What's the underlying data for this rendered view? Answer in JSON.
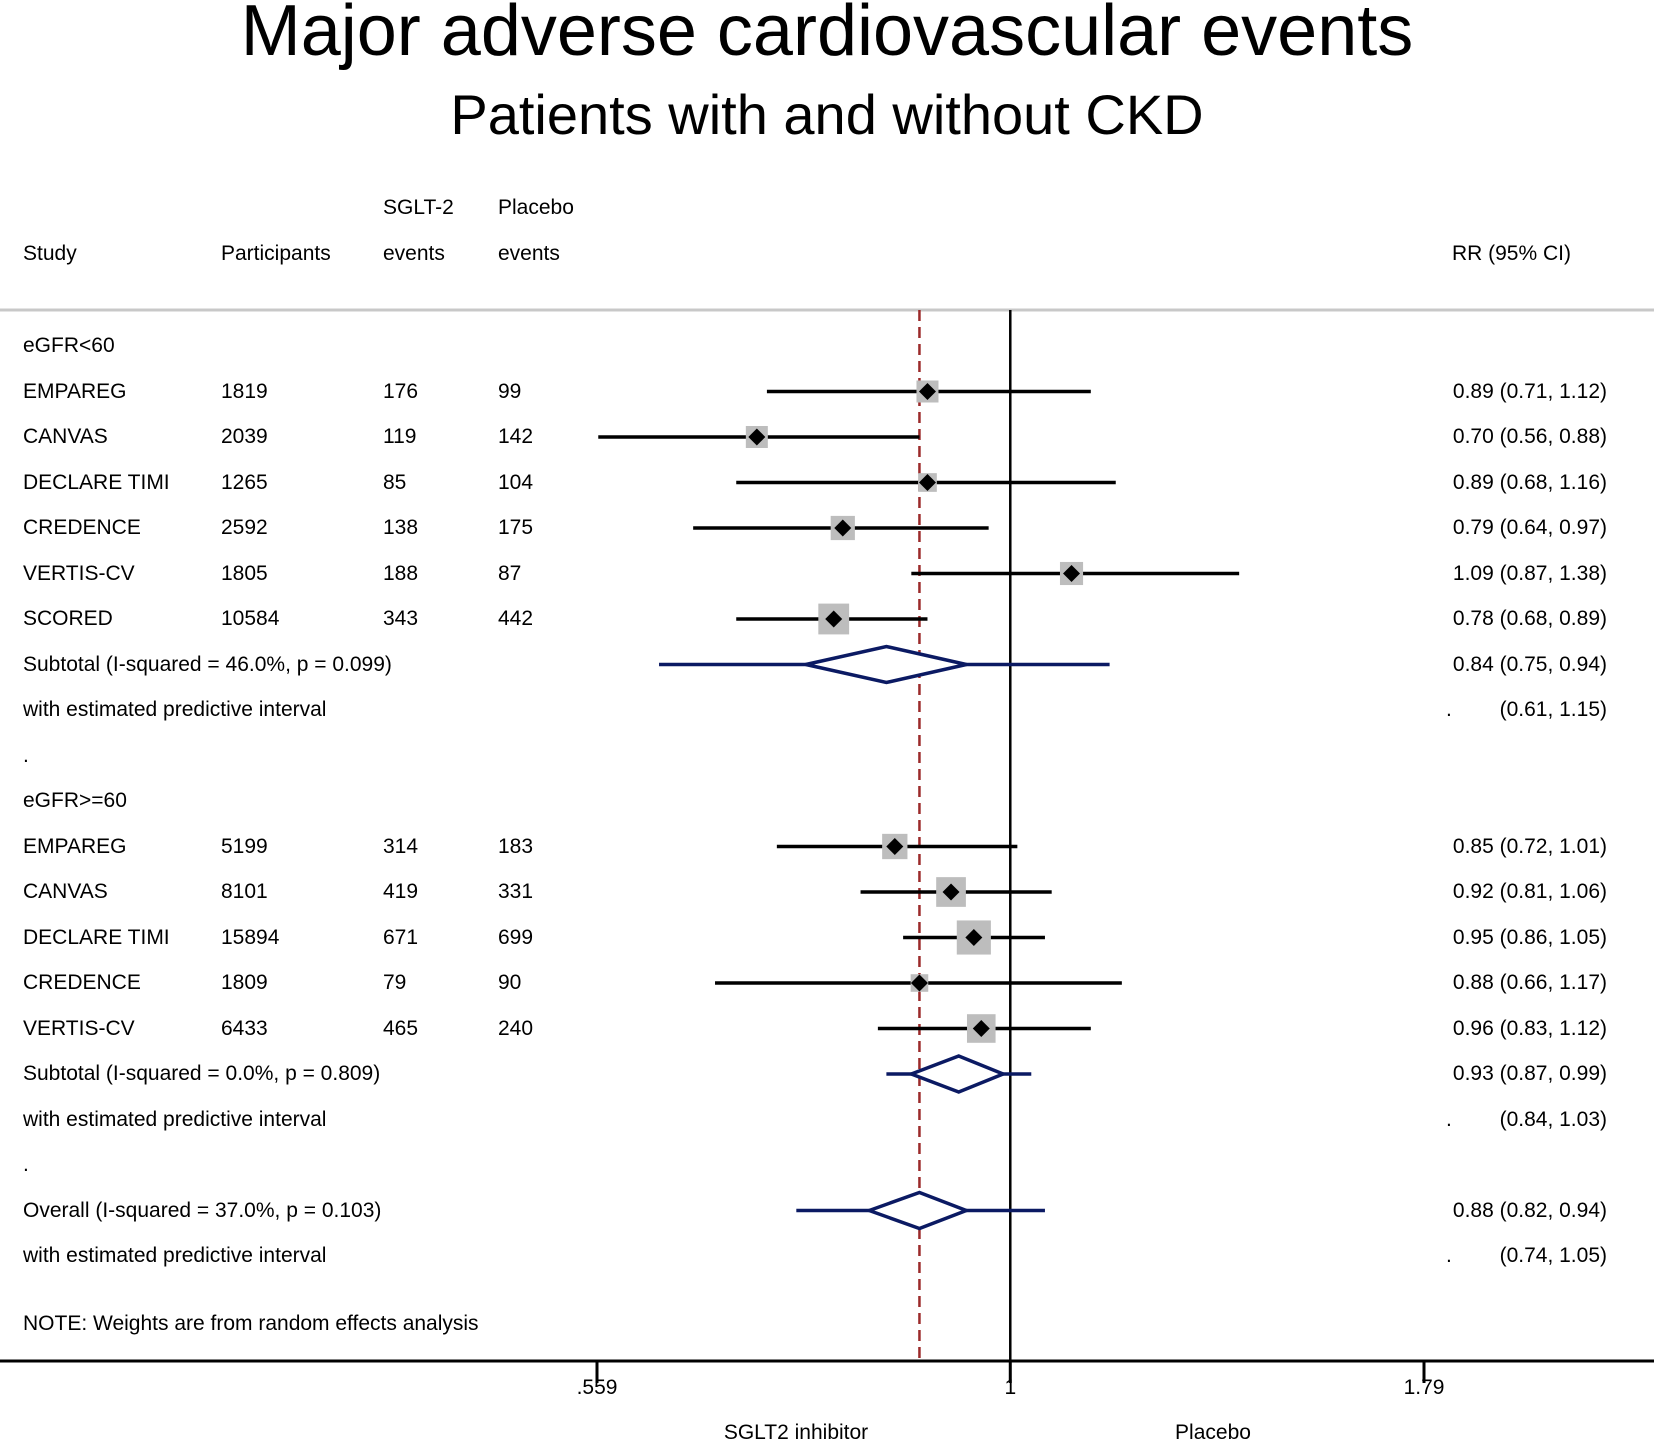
{
  "chart_data": {
    "type": "forest",
    "title": "Major adverse cardiovascular events",
    "subtitle": "Patients with and without CKD",
    "columns": {
      "study": "Study",
      "participants": "Participants",
      "sglt2_top": "SGLT-2",
      "sglt2_bottom": "events",
      "placebo_top": "Placebo",
      "placebo_bottom": "events",
      "rr": "RR (95% CI)"
    },
    "rows": [
      {
        "kind": "group",
        "label": "eGFR<60"
      },
      {
        "kind": "study",
        "label": "EMPAREG",
        "participants": "1819",
        "sglt2_events": "176",
        "placebo_events": "99",
        "rr": 0.89,
        "lo": 0.71,
        "hi": 1.12,
        "weight": 1.0,
        "text": "0.89 (0.71, 1.12)"
      },
      {
        "kind": "study",
        "label": "CANVAS",
        "participants": "2039",
        "sglt2_events": "119",
        "placebo_events": "142",
        "rr": 0.7,
        "lo": 0.56,
        "hi": 0.88,
        "weight": 1.0,
        "text": "0.70 (0.56, 0.88)"
      },
      {
        "kind": "study",
        "label": "DECLARE TIMI",
        "participants": "1265",
        "sglt2_events": "85",
        "placebo_events": "104",
        "rr": 0.89,
        "lo": 0.68,
        "hi": 1.16,
        "weight": 0.85,
        "text": "0.89 (0.68, 1.16)"
      },
      {
        "kind": "study",
        "label": "CREDENCE",
        "participants": "2592",
        "sglt2_events": "138",
        "placebo_events": "175",
        "rr": 0.79,
        "lo": 0.64,
        "hi": 0.97,
        "weight": 1.1,
        "text": "0.79 (0.64, 0.97)"
      },
      {
        "kind": "study",
        "label": "VERTIS-CV",
        "participants": "1805",
        "sglt2_events": "188",
        "placebo_events": "87",
        "rr": 1.09,
        "lo": 0.87,
        "hi": 1.38,
        "weight": 1.05,
        "text": "1.09 (0.87, 1.38)"
      },
      {
        "kind": "study",
        "label": "SCORED",
        "participants": "10584",
        "sglt2_events": "343",
        "placebo_events": "442",
        "rr": 0.78,
        "lo": 0.68,
        "hi": 0.89,
        "weight": 1.4,
        "text": "0.78 (0.68, 0.89)"
      },
      {
        "kind": "subtotal",
        "label": "Subtotal  (I-squared = 46.0%, p = 0.099)",
        "rr": 0.84,
        "lo": 0.75,
        "hi": 0.94,
        "text": "0.84 (0.75, 0.94)"
      },
      {
        "kind": "predictive",
        "label": "with estimated predictive interval",
        "lo": 0.61,
        "hi": 1.15,
        "dot": ".",
        "text": "(0.61, 1.15)"
      },
      {
        "kind": "spacer",
        "label": "."
      },
      {
        "kind": "group",
        "label": "eGFR>=60"
      },
      {
        "kind": "study",
        "label": "EMPAREG",
        "participants": "5199",
        "sglt2_events": "314",
        "placebo_events": "183",
        "rr": 0.85,
        "lo": 0.72,
        "hi": 1.01,
        "weight": 1.15,
        "text": "0.85 (0.72, 1.01)"
      },
      {
        "kind": "study",
        "label": "CANVAS",
        "participants": "8101",
        "sglt2_events": "419",
        "placebo_events": "331",
        "rr": 0.92,
        "lo": 0.81,
        "hi": 1.06,
        "weight": 1.35,
        "text": "0.92 (0.81, 1.06)"
      },
      {
        "kind": "study",
        "label": "DECLARE TIMI",
        "participants": "15894",
        "sglt2_events": "671",
        "placebo_events": "699",
        "rr": 0.95,
        "lo": 0.86,
        "hi": 1.05,
        "weight": 1.55,
        "text": "0.95 (0.86, 1.05)"
      },
      {
        "kind": "study",
        "label": "CREDENCE",
        "participants": "1809",
        "sglt2_events": "79",
        "placebo_events": "90",
        "rr": 0.88,
        "lo": 0.66,
        "hi": 1.17,
        "weight": 0.8,
        "text": "0.88 (0.66, 1.17)"
      },
      {
        "kind": "study",
        "label": "VERTIS-CV",
        "participants": "6433",
        "sglt2_events": "465",
        "placebo_events": "240",
        "rr": 0.96,
        "lo": 0.83,
        "hi": 1.12,
        "weight": 1.3,
        "text": "0.96 (0.83, 1.12)"
      },
      {
        "kind": "subtotal",
        "label": "Subtotal  (I-squared = 0.0%, p = 0.809)",
        "rr": 0.93,
        "lo": 0.87,
        "hi": 0.99,
        "text": "0.93 (0.87, 0.99)"
      },
      {
        "kind": "predictive",
        "label": "with estimated predictive interval",
        "lo": 0.84,
        "hi": 1.03,
        "dot": ".",
        "text": "(0.84, 1.03)"
      },
      {
        "kind": "spacer",
        "label": "."
      },
      {
        "kind": "subtotal",
        "label": "Overall  (I-squared = 37.0%, p = 0.103)",
        "rr": 0.88,
        "lo": 0.82,
        "hi": 0.94,
        "text": "0.88 (0.82, 0.94)"
      },
      {
        "kind": "predictive",
        "label": "with estimated predictive interval",
        "lo": 0.74,
        "hi": 1.05,
        "dot": ".",
        "text": "(0.74, 1.05)"
      }
    ],
    "note": "NOTE: Weights are from random effects analysis",
    "x_scale": "log",
    "xlim": [
      0.559,
      1.79
    ],
    "xticks": [
      0.559,
      1,
      1.79
    ],
    "xtick_labels": [
      ".559",
      "1",
      "1.79"
    ],
    "null_line": 1,
    "overall_line": 0.88,
    "xlabel_left": "SGLT2 inhibitor",
    "xlabel_right": "Placebo",
    "colors": {
      "ci_line": "#000000",
      "weight_box": "#bdbdbd",
      "diamond": "#0b1a63",
      "overall_dash": "#9b2a2a",
      "separator": "#c8c8c8"
    }
  }
}
